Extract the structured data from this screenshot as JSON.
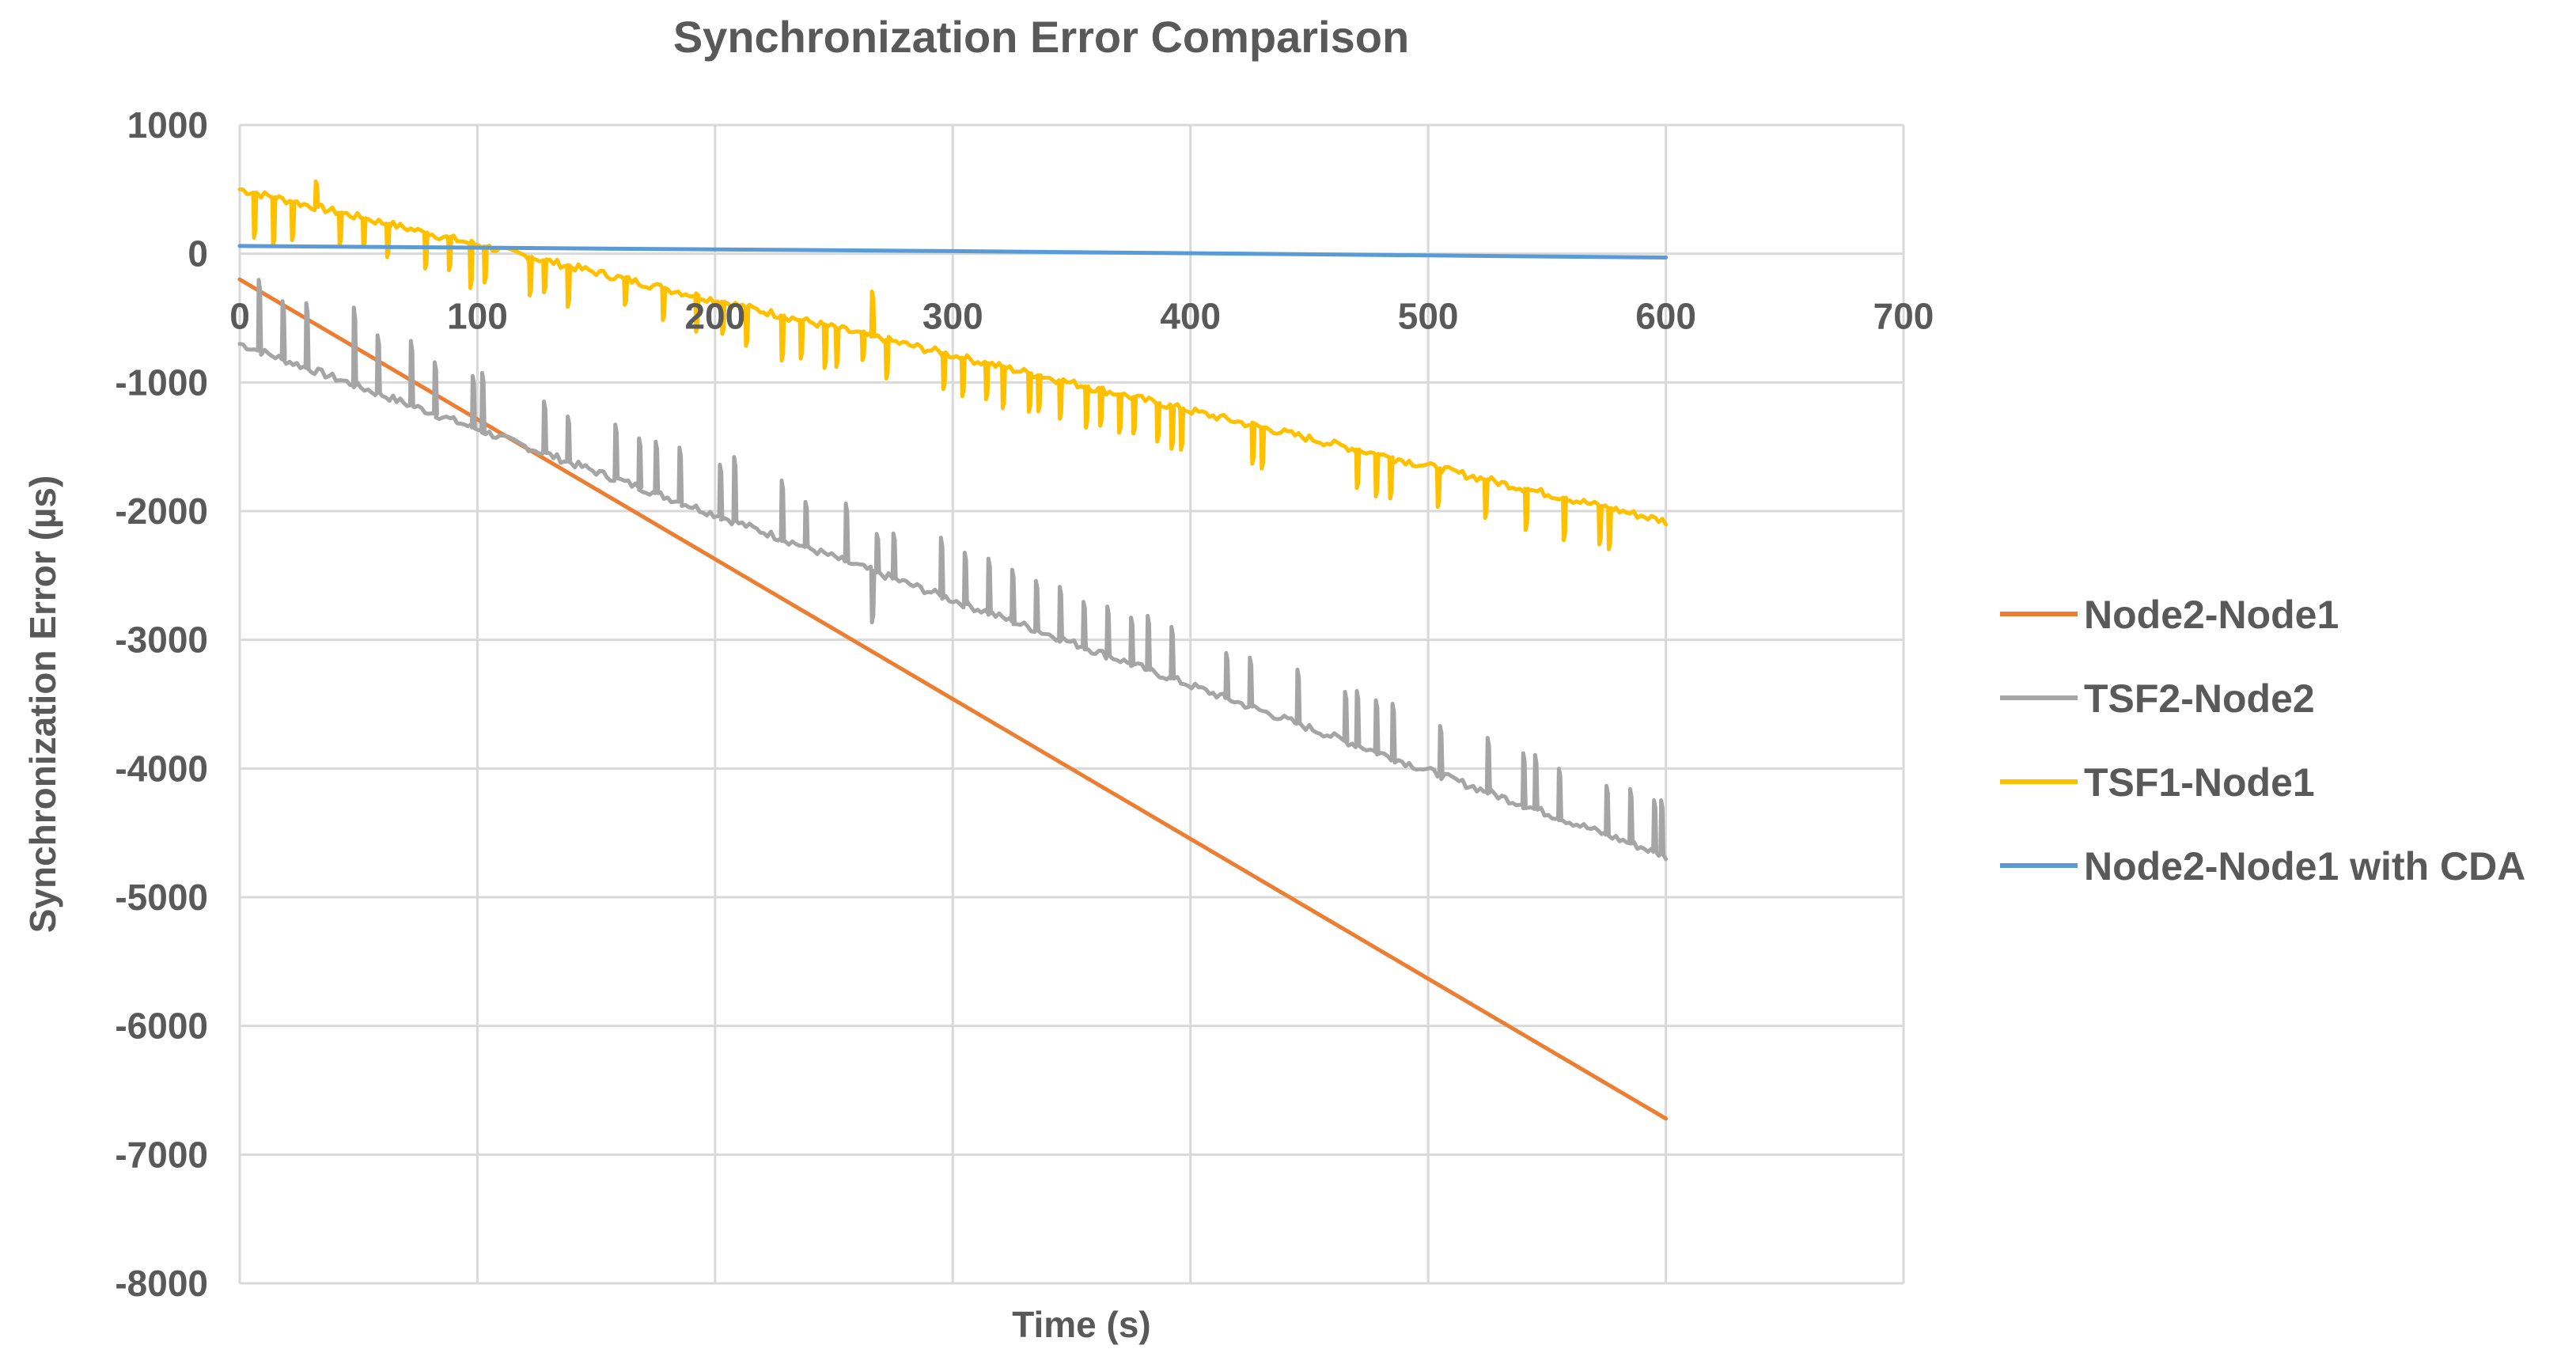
{
  "chart_data": {
    "type": "line",
    "title": "Synchronization Error Comparison",
    "xlabel": "Time (s)",
    "ylabel": "Synchronization Error (µs)",
    "xlim": [
      0,
      700
    ],
    "ylim": [
      -8000,
      1000
    ],
    "x_ticks": [
      0,
      100,
      200,
      300,
      400,
      500,
      600,
      700
    ],
    "y_ticks": [
      1000,
      0,
      -1000,
      -2000,
      -3000,
      -4000,
      -5000,
      -6000,
      -7000,
      -8000
    ],
    "grid": true,
    "legend_position": "right",
    "series": [
      {
        "name": "Node2-Node1",
        "color": "#ed7d31",
        "x": [
          0,
          600
        ],
        "y": [
          -200,
          -6720
        ]
      },
      {
        "name": "TSF2-Node2",
        "color": "#a5a5a5",
        "trend": {
          "x": [
            0,
            600
          ],
          "y": [
            -700,
            -4680
          ]
        },
        "spikes": {
          "x": [
            8,
            18,
            28,
            48,
            58,
            72,
            82,
            98,
            102,
            128,
            138,
            158,
            168,
            175,
            185,
            202,
            208,
            228,
            238,
            255,
            266,
            268,
            275,
            295,
            305,
            315,
            325,
            335,
            345,
            355,
            365,
            375,
            382,
            392,
            415,
            425,
            445,
            465,
            470,
            478,
            485,
            505,
            525,
            540,
            545,
            555,
            575,
            585,
            595,
            598
          ],
          "y": [
            550,
            450,
            500,
            600,
            450,
            500,
            400,
            400,
            450,
            400,
            350,
            420,
            380,
            400,
            420,
            400,
            500,
            450,
            350,
            450,
            -400,
            300,
            350,
            450,
            400,
            420,
            400,
            380,
            400,
            350,
            380,
            360,
            420,
            400,
            350,
            380,
            420,
            380,
            420,
            400,
            420,
            380,
            420,
            400,
            420,
            380,
            380,
            420,
            400,
            420
          ]
        }
      },
      {
        "name": "TSF1-Node1",
        "color": "#ffc000",
        "trend": {
          "x": [
            0,
            600
          ],
          "y": [
            500,
            -2080
          ]
        },
        "spikes": {
          "x": [
            6,
            14,
            22,
            32,
            42,
            52,
            62,
            78,
            88,
            97,
            103,
            122,
            128,
            138,
            162,
            178,
            192,
            203,
            213,
            228,
            236,
            246,
            251,
            262,
            266,
            272,
            296,
            304,
            314,
            321,
            332,
            336,
            345,
            356,
            362,
            370,
            376,
            386,
            392,
            396,
            426,
            430,
            470,
            478,
            484,
            504,
            524,
            541,
            557,
            572,
            576
          ],
          "y": [
            -350,
            -380,
            -300,
            200,
            -250,
            -220,
            -260,
            -280,
            -250,
            -350,
            -280,
            -300,
            -250,
            -320,
            -200,
            -250,
            -280,
            -250,
            -300,
            -350,
            -300,
            -330,
            -300,
            -200,
            350,
            -300,
            -280,
            -300,
            -280,
            -320,
            -300,
            -280,
            -300,
            -320,
            -280,
            -300,
            -280,
            -300,
            -330,
            -320,
            -300,
            -320,
            -300,
            -330,
            -320,
            -300,
            -300,
            -320,
            -330,
            -300,
            -320
          ]
        }
      },
      {
        "name": "Node2-Node1 with CDA",
        "color": "#5b9bd5",
        "x": [
          0,
          300,
          600
        ],
        "y": [
          60,
          20,
          -30
        ]
      }
    ]
  }
}
